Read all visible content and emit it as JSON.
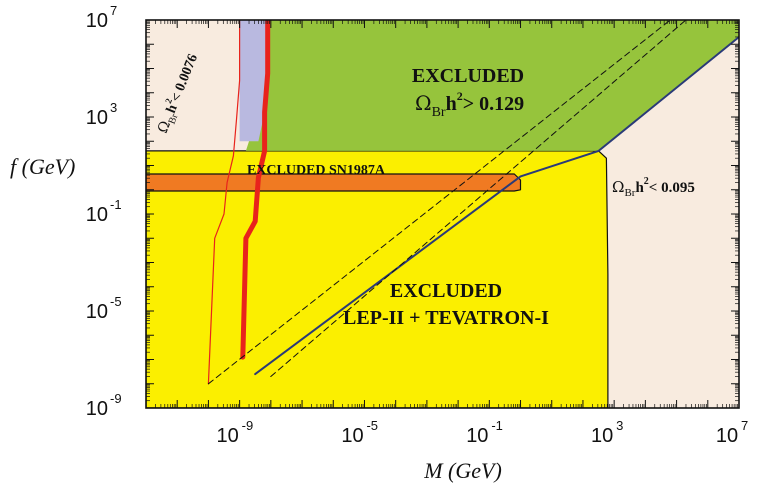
{
  "chart_data": {
    "type": "area",
    "title": "",
    "xlabel": "M (GeV)",
    "ylabel": "f (GeV)",
    "x_scale": "log",
    "y_scale": "log",
    "xlim_log10": [
      -12,
      7
    ],
    "ylim_log10": [
      -9,
      7
    ],
    "x_tick_labels": [
      {
        "base": "10",
        "exp": "-9",
        "log10": -9
      },
      {
        "base": "10",
        "exp": "-5",
        "log10": -5
      },
      {
        "base": "10",
        "exp": "-1",
        "log10": -1
      },
      {
        "base": "10",
        "exp": "3",
        "log10": 3
      },
      {
        "base": "10",
        "exp": "7",
        "log10": 7
      }
    ],
    "y_tick_labels": [
      {
        "base": "10",
        "exp": "7",
        "log10": 7
      },
      {
        "base": "10",
        "exp": "3",
        "log10": 3
      },
      {
        "base": "10",
        "exp": "-1",
        "log10": -1
      },
      {
        "base": "10",
        "exp": "-5",
        "log10": -5
      },
      {
        "base": "10",
        "exp": "-9",
        "log10": -9
      }
    ],
    "annotations": {
      "excluded_top": "EXCLUDED",
      "omega_upper_sym": "Ω",
      "omega_upper_sub": "Br",
      "omega_upper_h": "h",
      "omega_upper_exp": "2",
      "omega_upper_rel": "> 0.129",
      "sn_label": "EXCLUDED SN1987A",
      "omega_right_sym": "Ω",
      "omega_right_sub": "Br",
      "omega_right_h": "h",
      "omega_right_exp": "2",
      "omega_right_rel": "< 0.095",
      "omega_left_sym": "Ω",
      "omega_left_sub": "Br",
      "omega_left_h": "h",
      "omega_left_exp": "2",
      "omega_left_rel": "< 0.0076",
      "lep_line1": "EXCLUDED",
      "lep_line2": "LEP-II + TEVATRON-I"
    },
    "colors": {
      "background_region": "#f8ebdf",
      "lep_tevatron_region": "#fbef00",
      "overclosure_region": "#96c43c",
      "sn1987a_region": "#f07a22",
      "lavender_band": "#b9b9e0",
      "red_curve": "#e8231c",
      "blue_curve": "#2a3a78",
      "outline": "#111111"
    },
    "series": [
      {
        "kind": "region",
        "points": [
          [
            -12,
            -9
          ],
          [
            2.8,
            -9
          ],
          [
            2.8,
            -3.5
          ],
          [
            2.75,
            1.3
          ],
          [
            2.5,
            1.6
          ],
          [
            -12,
            1.6
          ]
        ]
      },
      {
        "kind": "region",
        "points": [
          [
            -12,
            1.6
          ],
          [
            -4.0,
            1.6
          ],
          [
            -0.2,
            1.6
          ],
          [
            1.5,
            1.6
          ],
          [
            2.5,
            1.6
          ],
          [
            7,
            6.3
          ],
          [
            7,
            7
          ],
          [
            -8.1,
            7
          ],
          [
            -8.2,
            5
          ],
          [
            -8.4,
            3.2
          ],
          [
            -8.8,
            1.6
          ]
        ]
      },
      {
        "kind": "region",
        "points": [
          [
            -12,
            -0.05
          ],
          [
            -12,
            0.65
          ],
          [
            -0.2,
            0.65
          ],
          [
            0,
            0.4
          ],
          [
            0,
            0
          ],
          [
            -0.2,
            -0.05
          ]
        ]
      },
      {
        "kind": "region",
        "points": [
          [
            -9.0,
            7
          ],
          [
            -8.1,
            7
          ],
          [
            -8.1,
            4.8
          ],
          [
            -8.2,
            3.2
          ],
          [
            -8.4,
            2.0
          ],
          [
            -9.0,
            2.0
          ],
          [
            -9.0,
            4.5
          ]
        ]
      },
      {
        "kind": "line",
        "points": [
          [
            -8.1,
            7
          ],
          [
            -8.1,
            4.8
          ],
          [
            -8.2,
            3.2
          ],
          [
            -8.2,
            1.6
          ],
          [
            -8.4,
            0.5
          ],
          [
            -8.5,
            -1.3
          ],
          [
            -8.8,
            -2.0
          ],
          [
            -8.9,
            -6.9
          ]
        ]
      },
      {
        "kind": "line",
        "points": [
          [
            -9.0,
            7
          ],
          [
            -9.0,
            4.5
          ],
          [
            -9.1,
            2.9
          ],
          [
            -9.2,
            1.4
          ],
          [
            -9.4,
            0.3
          ],
          [
            -9.5,
            -1.0
          ],
          [
            -9.8,
            -2.0
          ],
          [
            -10.0,
            -8.0
          ]
        ]
      },
      {
        "kind": "line",
        "points": [
          [
            -8.5,
            -7.6
          ],
          [
            0,
            0.55
          ],
          [
            2.5,
            1.6
          ],
          [
            7,
            6.3
          ]
        ]
      },
      {
        "kind": "dashed",
        "points": [
          [
            -10.0,
            -8.0
          ],
          [
            4.8,
            7
          ]
        ]
      },
      {
        "kind": "dashed",
        "points": [
          [
            -8.0,
            -7.7
          ],
          [
            5.3,
            7
          ]
        ]
      }
    ]
  }
}
